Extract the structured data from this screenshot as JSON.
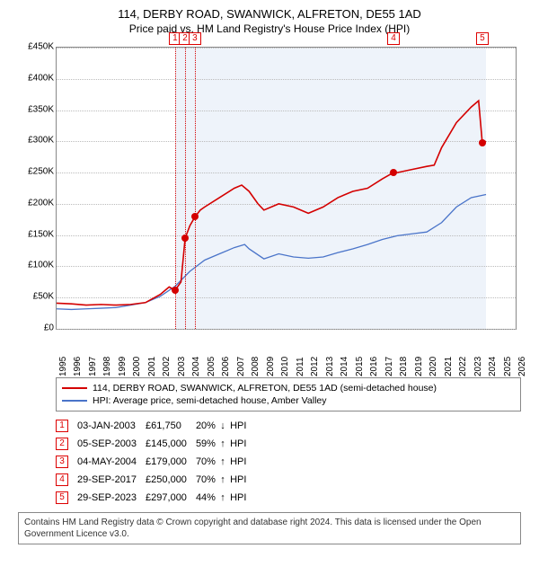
{
  "title": "114, DERBY ROAD, SWANWICK, ALFRETON, DE55 1AD",
  "subtitle": "Price paid vs. HM Land Registry's House Price Index (HPI)",
  "chart": {
    "type": "line",
    "ylim": [
      0,
      450000
    ],
    "ytick_step": 50000,
    "yticks_labels": [
      "£0",
      "£50K",
      "£100K",
      "£150K",
      "£200K",
      "£250K",
      "£300K",
      "£350K",
      "£400K",
      "£450K"
    ],
    "xlim": [
      1995,
      2026
    ],
    "xticks": [
      1995,
      1996,
      1997,
      1998,
      1999,
      2000,
      2001,
      2002,
      2003,
      2004,
      2005,
      2006,
      2007,
      2008,
      2009,
      2010,
      2011,
      2012,
      2013,
      2014,
      2015,
      2016,
      2017,
      2018,
      2019,
      2020,
      2021,
      2022,
      2023,
      2024,
      2025,
      2026
    ],
    "shaded_band": [
      2003,
      2024
    ],
    "red_vlines": [
      2003.0,
      2003.68,
      2004.34
    ],
    "colors": {
      "property": "#d40000",
      "hpi": "#4a74c9",
      "grid": "#bbbbbb",
      "shade": "#eef3fa"
    },
    "series": {
      "property": [
        [
          1995,
          41000
        ],
        [
          1996,
          40000
        ],
        [
          1997,
          38000
        ],
        [
          1998,
          39000
        ],
        [
          1999,
          38000
        ],
        [
          2000,
          39000
        ],
        [
          2001,
          42000
        ],
        [
          2002,
          55000
        ],
        [
          2002.6,
          67000
        ],
        [
          2003.0,
          61750
        ],
        [
          2003.4,
          75000
        ],
        [
          2003.68,
          145000
        ],
        [
          2004.0,
          165000
        ],
        [
          2004.34,
          179000
        ],
        [
          2004.7,
          190000
        ],
        [
          2005,
          195000
        ],
        [
          2006,
          210000
        ],
        [
          2007,
          225000
        ],
        [
          2007.5,
          230000
        ],
        [
          2008,
          220000
        ],
        [
          2008.6,
          200000
        ],
        [
          2009,
          190000
        ],
        [
          2010,
          200000
        ],
        [
          2011,
          195000
        ],
        [
          2012,
          185000
        ],
        [
          2013,
          195000
        ],
        [
          2014,
          210000
        ],
        [
          2015,
          220000
        ],
        [
          2016,
          225000
        ],
        [
          2017,
          240000
        ],
        [
          2017.75,
          250000
        ],
        [
          2018,
          250000
        ],
        [
          2019,
          255000
        ],
        [
          2020,
          260000
        ],
        [
          2020.5,
          262000
        ],
        [
          2021,
          290000
        ],
        [
          2022,
          330000
        ],
        [
          2023,
          355000
        ],
        [
          2023.5,
          365000
        ],
        [
          2023.75,
          297000
        ],
        [
          2024,
          300000
        ]
      ],
      "hpi": [
        [
          1995,
          32000
        ],
        [
          1996,
          31000
        ],
        [
          1997,
          32000
        ],
        [
          1998,
          33000
        ],
        [
          1999,
          34000
        ],
        [
          2000,
          38000
        ],
        [
          2001,
          42000
        ],
        [
          2002,
          52000
        ],
        [
          2003,
          68000
        ],
        [
          2004,
          92000
        ],
        [
          2005,
          110000
        ],
        [
          2006,
          120000
        ],
        [
          2007,
          130000
        ],
        [
          2007.7,
          135000
        ],
        [
          2008,
          128000
        ],
        [
          2009,
          112000
        ],
        [
          2010,
          120000
        ],
        [
          2011,
          115000
        ],
        [
          2012,
          113000
        ],
        [
          2013,
          115000
        ],
        [
          2014,
          122000
        ],
        [
          2015,
          128000
        ],
        [
          2016,
          135000
        ],
        [
          2017,
          143000
        ],
        [
          2018,
          149000
        ],
        [
          2019,
          152000
        ],
        [
          2020,
          155000
        ],
        [
          2021,
          170000
        ],
        [
          2022,
          195000
        ],
        [
          2023,
          210000
        ],
        [
          2024,
          215000
        ]
      ]
    },
    "markers": [
      {
        "n": "1",
        "year": 2003.0,
        "numbered_top": true
      },
      {
        "n": "2",
        "year": 2003.68,
        "numbered_top": true
      },
      {
        "n": "3",
        "year": 2004.34,
        "numbered_top": true
      },
      {
        "n": "4",
        "year": 2017.75,
        "numbered_top": true
      },
      {
        "n": "5",
        "year": 2023.75,
        "numbered_top": true
      }
    ],
    "sale_dots": [
      {
        "year": 2003.0,
        "val": 61750
      },
      {
        "year": 2003.68,
        "val": 145000
      },
      {
        "year": 2004.34,
        "val": 179000
      },
      {
        "year": 2017.75,
        "val": 250000
      },
      {
        "year": 2023.75,
        "val": 297000
      }
    ]
  },
  "legend": {
    "property": "114, DERBY ROAD, SWANWICK, ALFRETON, DE55 1AD (semi-detached house)",
    "hpi": "HPI: Average price, semi-detached house, Amber Valley"
  },
  "sales": [
    {
      "n": "1",
      "date": "03-JAN-2003",
      "price": "£61,750",
      "pct": "20%",
      "dir": "down",
      "vs": "HPI"
    },
    {
      "n": "2",
      "date": "05-SEP-2003",
      "price": "£145,000",
      "pct": "59%",
      "dir": "up",
      "vs": "HPI"
    },
    {
      "n": "3",
      "date": "04-MAY-2004",
      "price": "£179,000",
      "pct": "70%",
      "dir": "up",
      "vs": "HPI"
    },
    {
      "n": "4",
      "date": "29-SEP-2017",
      "price": "£250,000",
      "pct": "70%",
      "dir": "up",
      "vs": "HPI"
    },
    {
      "n": "5",
      "date": "29-SEP-2023",
      "price": "£297,000",
      "pct": "44%",
      "dir": "up",
      "vs": "HPI"
    }
  ],
  "footer": "Contains HM Land Registry data © Crown copyright and database right 2024. This data is licensed under the Open Government Licence v3.0."
}
